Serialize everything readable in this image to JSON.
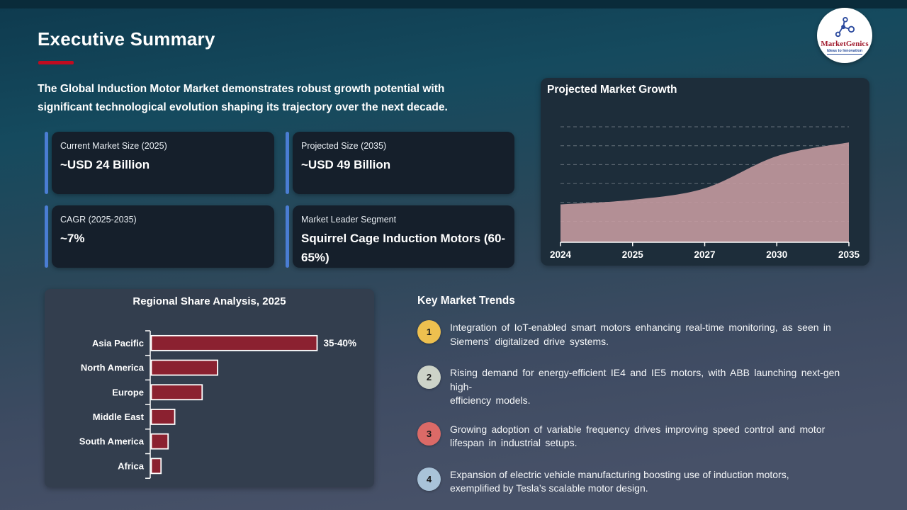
{
  "slide": {
    "title": "Executive Summary",
    "intro": "The Global Induction Motor Market demonstrates robust growth potential with\nsignificant technological evolution shaping its trajectory over the next decade."
  },
  "logo": {
    "brand": "MarketGenics",
    "tagline": "Ideas to Innovation"
  },
  "stats": [
    {
      "label": "Current Market Size (2025)",
      "value": "~USD 24 Billion"
    },
    {
      "label": "Projected Size (2035)",
      "value": "~USD 49 Billion"
    },
    {
      "label": "CAGR (2025-2035)",
      "value": "~7%"
    },
    {
      "label": "Market Leader Segment",
      "value": "Squirrel Cage Induction Motors (60-65%)"
    }
  ],
  "chart_data": [
    {
      "type": "area",
      "title": "Projected Market Growth",
      "x": [
        "2024",
        "2025",
        "2027",
        "2030",
        "2035"
      ],
      "values": [
        22,
        24,
        29,
        43,
        49
      ],
      "unit": "USD Billion (approx., read from card values 24B in 2025 to 49B in 2035)",
      "area_color": "#c49aa0",
      "grid": "dashed horizontal",
      "legend": "none"
    },
    {
      "type": "bar",
      "orientation": "horizontal",
      "title": "Regional Share Analysis, 2025",
      "categories": [
        "Asia Pacific",
        "North America",
        "Europe",
        "Middle East",
        "South America",
        "Africa"
      ],
      "values": [
        37.5,
        15,
        11.5,
        5.3,
        3.8,
        2.2
      ],
      "data_labels": [
        "35-40%",
        "",
        "",
        "",
        "",
        ""
      ],
      "xlabel": "",
      "ylabel": "",
      "bar_color": "#8b2130",
      "grid": "off",
      "legend": "none"
    }
  ],
  "trends": {
    "heading": "Key Market Trends",
    "items": [
      {
        "num": "1",
        "color": "#eec04f",
        "text": "Integration of IoT-enabled smart motors enhancing real-time monitoring, as seen in\nSiemens’ digitalized drive systems."
      },
      {
        "num": "2",
        "color": "#cdd3c8",
        "text": "Rising demand for energy-efficient IE4 and IE5 motors, with ABB launching next-gen high-\nefficiency models."
      },
      {
        "num": "3",
        "color": "#db6a67",
        "text": "Growing adoption of variable frequency drives improving speed control and motor\nlifespan in industrial setups."
      },
      {
        "num": "4",
        "color": "#a9c3d9",
        "text": "Expansion of electric vehicle manufacturing boosting use of induction motors,\nexemplified by Tesla’s scalable motor design."
      }
    ]
  },
  "colors": {
    "accent_blue": "#4a7dd3",
    "underline_red": "#c00b20",
    "area_pink": "#c49aa0",
    "bar_red": "#8b2130",
    "stat_card_bg": "#151f2b",
    "growth_card_bg": "#1d2d3a",
    "regional_card_bg": "#333e4e",
    "background_top": "#0e3a4e",
    "background_bottom": "#475168"
  }
}
